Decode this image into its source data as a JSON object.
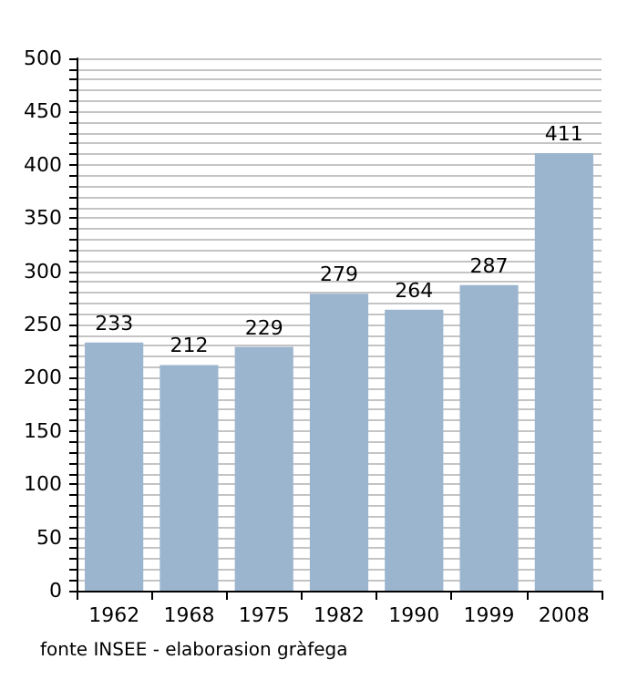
{
  "chart_data": {
    "type": "bar",
    "categories": [
      "1962",
      "1968",
      "1975",
      "1982",
      "1990",
      "1999",
      "2008"
    ],
    "values": [
      233,
      212,
      229,
      279,
      264,
      287,
      411
    ],
    "color": "#9bb5cf",
    "data_labels": true,
    "ylim": [
      0,
      500
    ],
    "yticks": [
      0,
      {
        "value": 10,
        "label": null
      },
      {
        "value": 20,
        "label": null
      },
      {
        "value": 30,
        "label": null
      },
      {
        "value": 40,
        "label": null
      },
      50,
      {
        "value": 60,
        "label": null
      },
      {
        "value": 70,
        "label": null
      },
      {
        "value": 80,
        "label": null
      },
      {
        "value": 90,
        "label": null
      },
      100,
      {
        "value": 110,
        "label": null
      },
      {
        "value": 120,
        "label": null
      },
      {
        "value": 130,
        "label": null
      },
      {
        "value": 140,
        "label": null
      },
      150,
      {
        "value": 160,
        "label": null
      },
      {
        "value": 170,
        "label": null
      },
      {
        "value": 180,
        "label": null
      },
      {
        "value": 190,
        "label": null
      },
      200,
      {
        "value": 210,
        "label": null
      },
      {
        "value": 220,
        "label": null
      },
      {
        "value": 230,
        "label": null
      },
      {
        "value": 240,
        "label": null
      },
      250,
      {
        "value": 260,
        "label": null
      },
      {
        "value": 270,
        "label": null
      },
      {
        "value": 280,
        "label": null
      },
      {
        "value": 290,
        "label": null
      },
      300,
      {
        "value": 310,
        "label": null
      },
      {
        "value": 320,
        "label": null
      },
      {
        "value": 330,
        "label": null
      },
      {
        "value": 340,
        "label": null
      },
      350,
      {
        "value": 360,
        "label": null
      },
      {
        "value": 370,
        "label": null
      },
      {
        "value": 380,
        "label": null
      },
      {
        "value": 390,
        "label": null
      },
      400,
      {
        "value": 410,
        "label": null
      },
      {
        "value": 420,
        "label": null
      },
      {
        "value": 430,
        "label": null
      },
      {
        "value": 440,
        "label": null
      },
      450,
      {
        "value": 460,
        "label": null
      },
      {
        "value": 470,
        "label": null
      },
      {
        "value": 480,
        "label": null
      },
      {
        "value": 490,
        "label": null
      },
      500
    ],
    "grid": "y",
    "annotations": [
      "fonte INSEE - elaborasion gràfega"
    ]
  }
}
